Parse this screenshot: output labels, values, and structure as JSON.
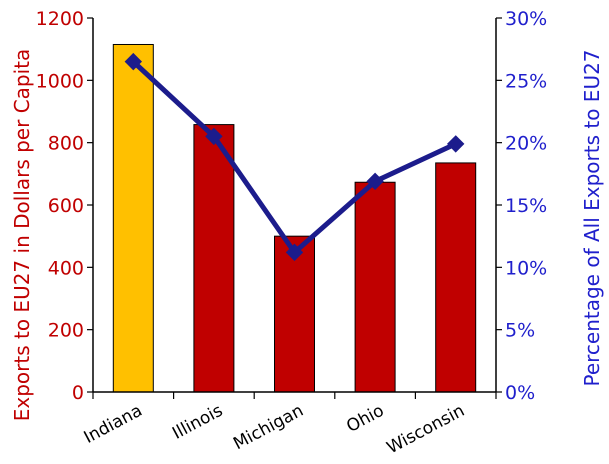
{
  "chart_data": {
    "type": "bar",
    "categories": [
      "Indiana",
      "Illinois",
      "Michigan",
      "Ohio",
      "Wisconsin"
    ],
    "series": [
      {
        "name": "Exports to EU27 in Dollars per Capita",
        "type": "bar",
        "axis": "left",
        "values": [
          1115,
          858,
          500,
          673,
          735
        ],
        "colors": [
          "#FFC000",
          "#C00000",
          "#C00000",
          "#C00000",
          "#C00000"
        ]
      },
      {
        "name": "Percentage of All Exports to EU27",
        "type": "line",
        "axis": "right",
        "values": [
          0.265,
          0.205,
          0.112,
          0.169,
          0.199
        ],
        "color": "#1C1C8C"
      }
    ],
    "ylabel": "Exports to EU27 in Dollars per Capita",
    "ylabel_right": "Percentage of All Exports to EU27",
    "ylim": [
      0,
      1200
    ],
    "ylim_right": [
      0,
      0.3
    ],
    "yticks": [
      "0",
      "200",
      "400",
      "600",
      "800",
      "1000",
      "1200"
    ],
    "yticks_right": [
      "0%",
      "5%",
      "10%",
      "15%",
      "20%",
      "25%",
      "30%"
    ],
    "grid": false,
    "left_axis_color": "#C00000",
    "right_axis_color": "#1F1FCC"
  }
}
